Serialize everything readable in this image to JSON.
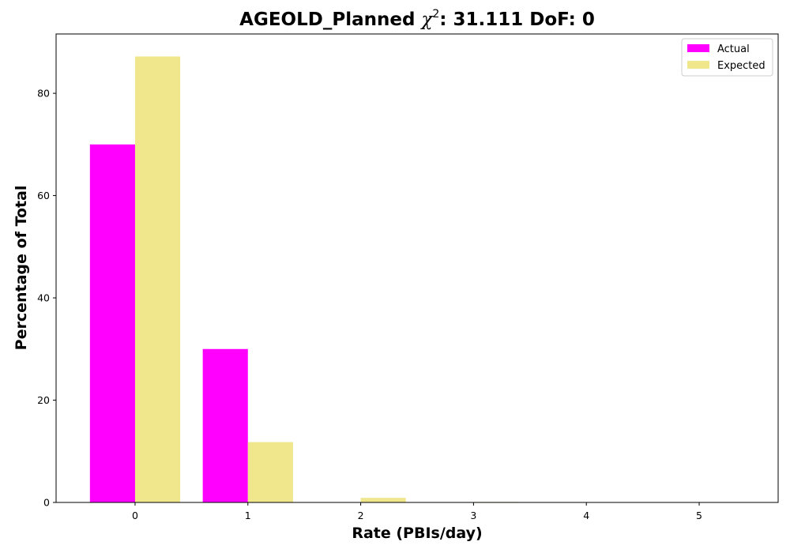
{
  "chart_data": {
    "type": "bar",
    "title_prefix": "AGEOLD_Planned ",
    "title_chi": "χ",
    "title_sup": "2",
    "title_suffix": ": 31.111 DoF: 0",
    "xlabel": "Rate (PBIs/day)",
    "ylabel": "Percentage of Total",
    "categories": [
      "0",
      "1",
      "2",
      "3",
      "4",
      "5"
    ],
    "x": [
      0,
      1,
      2,
      3,
      4,
      5
    ],
    "xlim": [
      -0.7,
      5.7
    ],
    "ylim": [
      0,
      91.6
    ],
    "yticks": [
      0,
      20,
      40,
      60,
      80
    ],
    "series": [
      {
        "name": "Actual",
        "color": "#ff00ff",
        "values": [
          70.0,
          30.0,
          0,
          0,
          0,
          0
        ]
      },
      {
        "name": "Expected",
        "color": "#f0e68c",
        "values": [
          87.2,
          11.8,
          0.9,
          0.1,
          0,
          0
        ]
      }
    ],
    "bar_width": 0.4,
    "legend_position": "top-right",
    "grid": false
  }
}
